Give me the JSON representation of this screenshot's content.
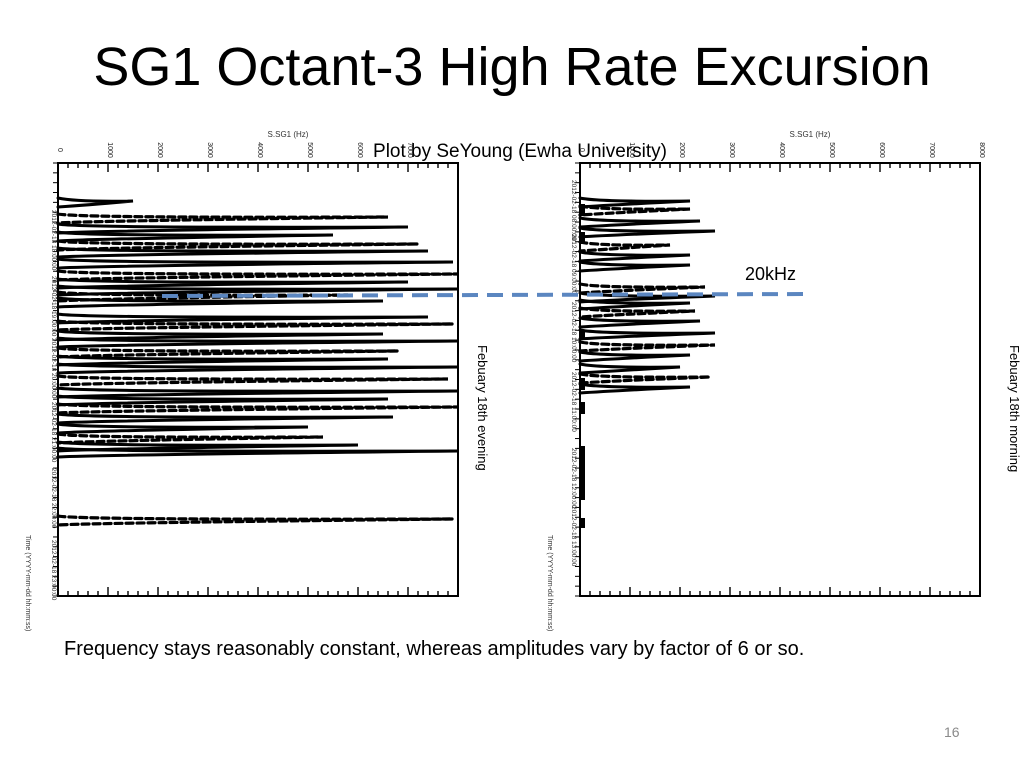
{
  "slide": {
    "title": "SG1 Octant-3 High Rate Excursion",
    "credit": "Plot by SeYoung (Ewha University)",
    "caption": "Frequency stays reasonably constant, whereas amplitudes vary by factor of 6 or so.",
    "slide_number": "16",
    "threshold_label": "20kHz"
  },
  "chart_data": [
    {
      "type": "line",
      "panel": "left",
      "title": "",
      "axis_top_label": "S.SG1 (Hz)",
      "xlim": [
        0,
        8000
      ],
      "x_ticks": [
        "0",
        "1000",
        "2000",
        "3000",
        "4000",
        "5000",
        "6000",
        "7000"
      ],
      "side_label": "Febuary 18th evening",
      "time_axis_label": "Time (YYYY-mm-dd hh:mm:ss)",
      "time_tick_labels": [
        "2012-02-18 18:00:00",
        "2012-02-18 19:00:00",
        "2012-02-18 20:00:00",
        "2012-02-18 21:00:00",
        "2012-02-18 22:00:00",
        "2012-02-18 23:00:00"
      ],
      "spike_peaks_hz": [
        1500,
        6600,
        7000,
        5500,
        7200,
        7400,
        7900,
        8000,
        7000,
        8000,
        5800,
        6500,
        7400,
        7900,
        6500,
        8000,
        6800,
        6600,
        8000,
        7800,
        8000,
        6600,
        8000,
        6700,
        5000,
        5300,
        6000,
        8000,
        7900
      ]
    },
    {
      "type": "line",
      "panel": "right",
      "title": "",
      "axis_top_label": "S.SG1 (Hz)",
      "xlim": [
        0,
        8000
      ],
      "x_ticks": [
        "0",
        "1000",
        "2000",
        "3000",
        "4000",
        "5000",
        "6000",
        "7000",
        "8000"
      ],
      "side_label": "Febuary 18th morning",
      "time_axis_label": "Time (YYYY-mm-dd hh:mm:ss)",
      "time_tick_labels": [
        "2012-02-18 08:00:00",
        "2012-02-18 09:00:00",
        "2012-02-18 10:00:00",
        "2012-02-18 11:00:00",
        "2012-02-18 12:00:00",
        "2012-02-18 13:00:00"
      ],
      "spike_peaks_hz": [
        2200,
        2200,
        2400,
        2700,
        1800,
        2200,
        2200,
        2500,
        2700,
        2200,
        2300,
        2400,
        2700,
        2700,
        2200,
        2000,
        2600,
        2200
      ]
    }
  ]
}
